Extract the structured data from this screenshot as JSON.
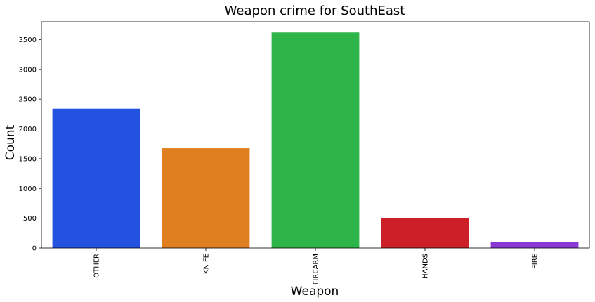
{
  "chart_data": {
    "type": "bar",
    "title": "Weapon crime for SouthEast",
    "xlabel": "Weapon",
    "ylabel": "Count",
    "categories": [
      "OTHER",
      "KNIFE",
      "FIREARM",
      "HANDS",
      "FIRE"
    ],
    "values": [
      2340,
      1675,
      3620,
      500,
      100
    ],
    "colors": [
      "#2352e0",
      "#e07f20",
      "#2eb54a",
      "#cc1f27",
      "#8a3ad4"
    ],
    "ylim": [
      0,
      3800
    ],
    "yticks": [
      0,
      500,
      1000,
      1500,
      2000,
      2500,
      3000,
      3500
    ],
    "grid": false,
    "legend": "none",
    "xtick_rotation": "vertical"
  }
}
